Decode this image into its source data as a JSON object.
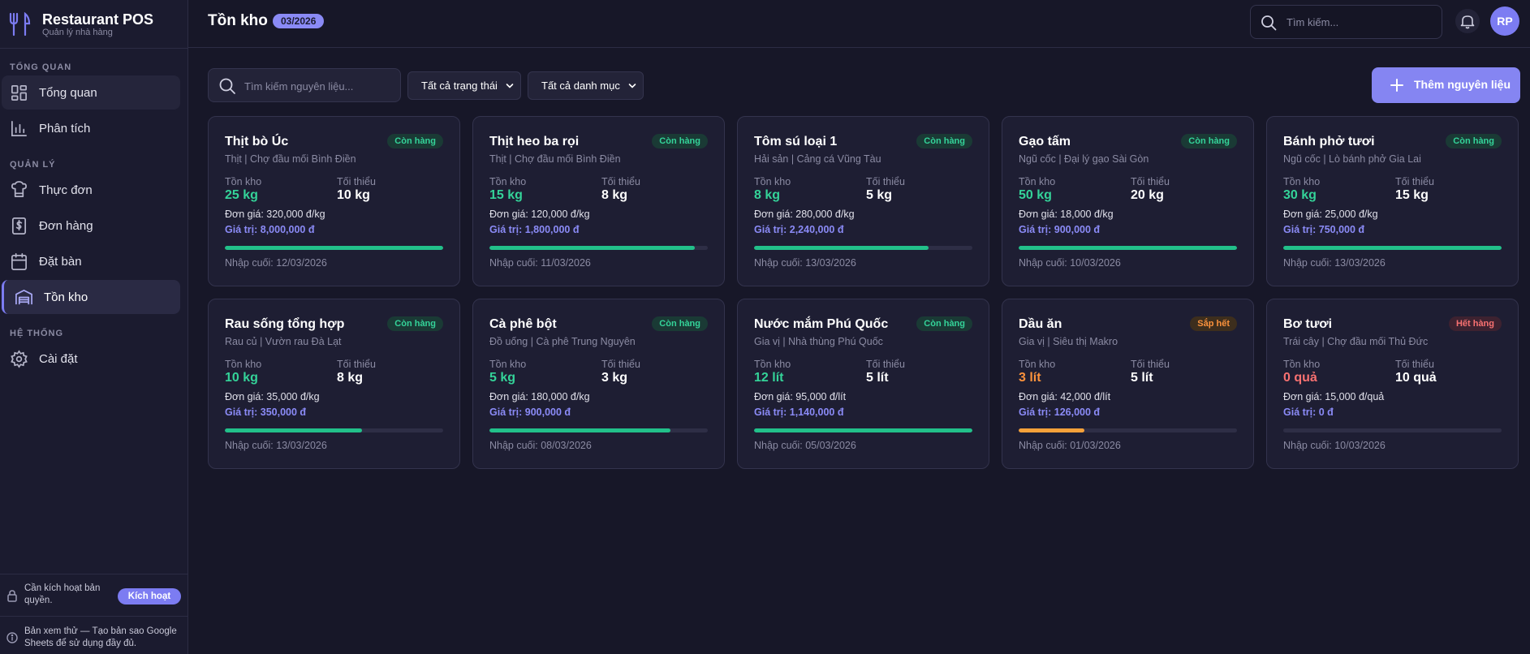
{
  "brand": {
    "title": "Restaurant POS",
    "subtitle": "Quản lý nhà hàng",
    "icon": "fork-knife-icon"
  },
  "sidebar": {
    "sections": [
      {
        "label": "TỔNG QUAN"
      },
      {
        "label": "QUẢN LÝ"
      },
      {
        "label": "HỆ THỐNG"
      }
    ],
    "items": [
      {
        "label": "Tổng quan",
        "icon": "dashboard-icon"
      },
      {
        "label": "Phân tích",
        "icon": "chart-icon"
      },
      {
        "label": "Thực đơn",
        "icon": "menu-icon"
      },
      {
        "label": "Đơn hàng",
        "icon": "invoice-icon"
      },
      {
        "label": "Đặt bàn",
        "icon": "calendar-icon"
      },
      {
        "label": "Tồn kho",
        "icon": "warehouse-icon",
        "active": true
      },
      {
        "label": "Cài đặt",
        "icon": "gear-icon"
      }
    ],
    "license": {
      "text": "Cần kích hoạt bản quyền.",
      "button": "Kích hoạt"
    },
    "trial": {
      "text": "Bản xem thử — Tạo bản sao Google Sheets để sử dụng đầy đủ."
    }
  },
  "header": {
    "title": "Tồn kho",
    "period": "03/2026",
    "search_placeholder": "Tìm kiếm...",
    "avatar": "RP"
  },
  "toolbar": {
    "search_placeholder": "Tìm kiếm nguyên liệu...",
    "status_filter": "Tất cả trạng thái",
    "category_filter": "Tất cả danh mục",
    "add_button": "Thêm nguyên liệu"
  },
  "labels": {
    "stock": "Tồn kho",
    "minimum": "Tối thiểu"
  },
  "colors": {
    "accent": "#7c7cf2",
    "ok": "#34d399",
    "low": "#fb923c",
    "out": "#f87171"
  },
  "items": [
    {
      "name": "Thịt bò Úc",
      "status": "Còn hàng",
      "status_type": "ok",
      "category": "Thịt | Chợ đầu mối Bình Điền",
      "stock": "25 kg",
      "minimum": "10 kg",
      "price": "Đơn giá: 320,000 đ/kg",
      "value": "Giá trị: 8,000,000 đ",
      "level": 1.0,
      "last_import": "Nhập cuối: 12/03/2026"
    },
    {
      "name": "Thịt heo ba rọi",
      "status": "Còn hàng",
      "status_type": "ok",
      "category": "Thịt | Chợ đầu mối Bình Điền",
      "stock": "15 kg",
      "minimum": "8 kg",
      "price": "Đơn giá: 120,000 đ/kg",
      "value": "Giá trị: 1,800,000 đ",
      "level": 0.94,
      "last_import": "Nhập cuối: 11/03/2026"
    },
    {
      "name": "Tôm sú loại 1",
      "status": "Còn hàng",
      "status_type": "ok",
      "category": "Hải sản | Cảng cá Vũng Tàu",
      "stock": "8 kg",
      "minimum": "5 kg",
      "price": "Đơn giá: 280,000 đ/kg",
      "value": "Giá trị: 2,240,000 đ",
      "level": 0.8,
      "last_import": "Nhập cuối: 13/03/2026"
    },
    {
      "name": "Gạo tấm",
      "status": "Còn hàng",
      "status_type": "ok",
      "category": "Ngũ cốc | Đại lý gạo Sài Gòn",
      "stock": "50 kg",
      "minimum": "20 kg",
      "price": "Đơn giá: 18,000 đ/kg",
      "value": "Giá trị: 900,000 đ",
      "level": 1.0,
      "last_import": "Nhập cuối: 10/03/2026"
    },
    {
      "name": "Bánh phở tươi",
      "status": "Còn hàng",
      "status_type": "ok",
      "category": "Ngũ cốc | Lò bánh phở Gia Lai",
      "stock": "30 kg",
      "minimum": "15 kg",
      "price": "Đơn giá: 25,000 đ/kg",
      "value": "Giá trị: 750,000 đ",
      "level": 1.0,
      "last_import": "Nhập cuối: 13/03/2026"
    },
    {
      "name": "Rau sống tổng hợp",
      "status": "Còn hàng",
      "status_type": "ok",
      "category": "Rau củ | Vườn rau Đà Lạt",
      "stock": "10 kg",
      "minimum": "8 kg",
      "price": "Đơn giá: 35,000 đ/kg",
      "value": "Giá trị: 350,000 đ",
      "level": 0.63,
      "last_import": "Nhập cuối: 13/03/2026"
    },
    {
      "name": "Cà phê bột",
      "status": "Còn hàng",
      "status_type": "ok",
      "category": "Đồ uống | Cà phê Trung Nguyên",
      "stock": "5 kg",
      "minimum": "3 kg",
      "price": "Đơn giá: 180,000 đ/kg",
      "value": "Giá trị: 900,000 đ",
      "level": 0.83,
      "last_import": "Nhập cuối: 08/03/2026"
    },
    {
      "name": "Nước mắm Phú Quốc",
      "status": "Còn hàng",
      "status_type": "ok",
      "category": "Gia vị | Nhà thùng Phú Quốc",
      "stock": "12 lít",
      "minimum": "5 lít",
      "price": "Đơn giá: 95,000 đ/lít",
      "value": "Giá trị: 1,140,000 đ",
      "level": 1.0,
      "last_import": "Nhập cuối: 05/03/2026"
    },
    {
      "name": "Dầu ăn",
      "status": "Sắp hết",
      "status_type": "low",
      "category": "Gia vị | Siêu thị Makro",
      "stock": "3 lít",
      "minimum": "5 lít",
      "price": "Đơn giá: 42,000 đ/lít",
      "value": "Giá trị: 126,000 đ",
      "level": 0.3,
      "last_import": "Nhập cuối: 01/03/2026"
    },
    {
      "name": "Bơ tươi",
      "status": "Hết hàng",
      "status_type": "out",
      "category": "Trái cây | Chợ đầu mối Thủ Đức",
      "stock": "0 quả",
      "minimum": "10 quả",
      "price": "Đơn giá: 15,000 đ/quả",
      "value": "Giá trị: 0 đ",
      "level": 0.0,
      "last_import": "Nhập cuối: 10/03/2026"
    }
  ]
}
